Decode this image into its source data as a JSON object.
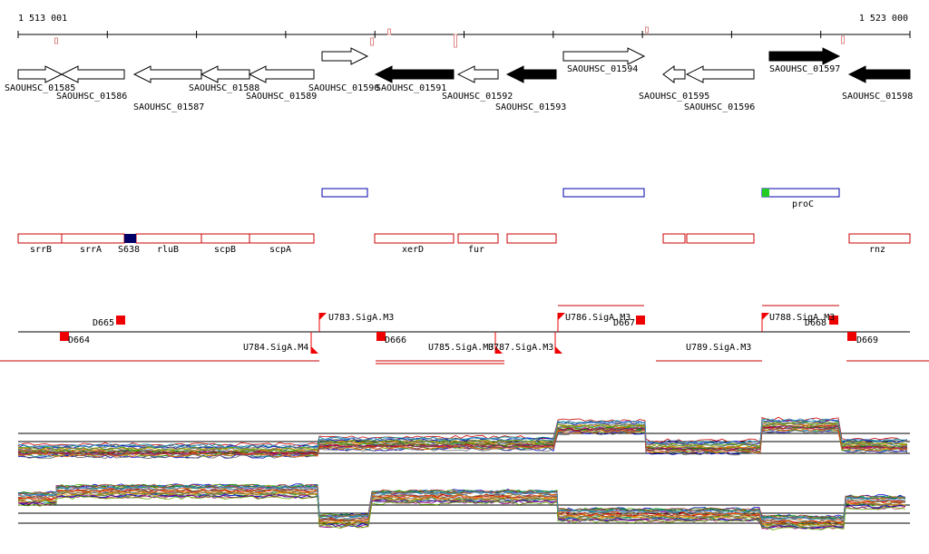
{
  "ruler": {
    "start": "1 513 001",
    "end": "1 523 000"
  },
  "genes": [
    "SAOUHSC_01585",
    "SAOUHSC_01586",
    "SAOUHSC_01587",
    "SAOUHSC_01588",
    "SAOUHSC_01589",
    "SAOUHSC_01590",
    "SAOUHSC_01591",
    "SAOUHSC_01592",
    "SAOUHSC_01593",
    "SAOUHSC_01594",
    "SAOUHSC_01595",
    "SAOUHSC_01596",
    "SAOUHSC_01597",
    "SAOUHSC_01598"
  ],
  "operons": [
    "proC"
  ],
  "features": [
    "srrB",
    "srrA",
    "S638",
    "rluB",
    "scpB",
    "scpA",
    "xerD",
    "fur",
    "rnz"
  ],
  "promoters": [
    "D664",
    "D665",
    "U783.SigA.M3",
    "U784.SigA.M4",
    "D666",
    "U785.SigA.M3",
    "U787.SigA.M3",
    "U786.SigA.M3",
    "D667",
    "U789.SigA.M3",
    "U788.SigA.M3",
    "D668",
    "D669"
  ]
}
